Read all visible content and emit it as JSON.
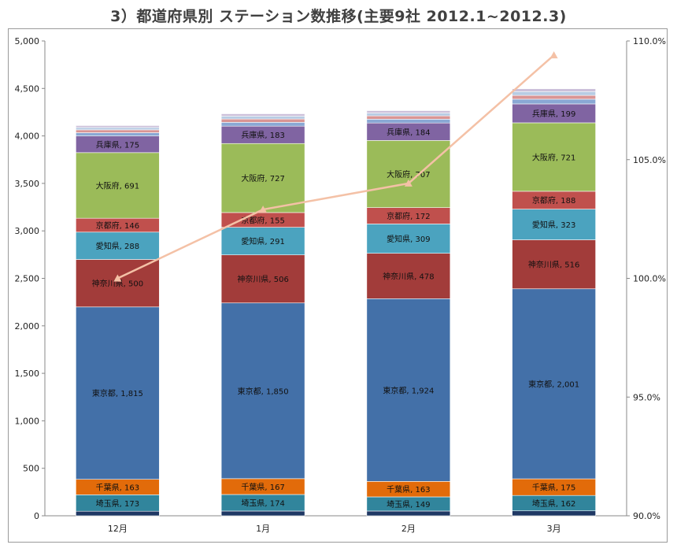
{
  "title": "3）都道府県別 ステーション数推移(主要9社 2012.1~2012.3)",
  "chart_data": {
    "type": "bar",
    "stacked": true,
    "categories": [
      "12月",
      "1月",
      "2月",
      "3月"
    ],
    "y_left_ticks": [
      "0",
      "500",
      "1,000",
      "1,500",
      "2,000",
      "2,500",
      "3,000",
      "3,500",
      "4,000",
      "4,500",
      "5,000"
    ],
    "ylim": [
      0,
      5000
    ],
    "y_right_ticks": [
      "90.0%",
      "95.0%",
      "100.0%",
      "105.0%",
      "110.0%"
    ],
    "y2lim": [
      90,
      110
    ],
    "series": [
      {
        "key": "base",
        "color": "#1f3864",
        "values": [
          48,
          50,
          50,
          52
        ]
      },
      {
        "label": "埼玉県",
        "color": "#31859c",
        "values": [
          173,
          174,
          149,
          162
        ],
        "value_labels": [
          "173",
          "174",
          "149",
          "162"
        ]
      },
      {
        "label": "千葉県",
        "color": "#e26b0a",
        "values": [
          163,
          167,
          163,
          175
        ],
        "value_labels": [
          "163",
          "167",
          "163",
          "175"
        ]
      },
      {
        "label": "東京都",
        "color": "#4370a8",
        "values": [
          1815,
          1850,
          1924,
          2001
        ],
        "value_labels": [
          "1,815",
          "1,850",
          "1,924",
          "2,001"
        ]
      },
      {
        "label": "神奈川県",
        "color": "#a23c3a",
        "values": [
          500,
          506,
          478,
          516
        ],
        "value_labels": [
          "500",
          "506",
          "478",
          "516"
        ]
      },
      {
        "label": "愛知県",
        "color": "#4ba3bf",
        "values": [
          288,
          291,
          309,
          323
        ],
        "value_labels": [
          "288",
          "291",
          "309",
          "323"
        ]
      },
      {
        "label": "京都府",
        "color": "#c0504d",
        "values": [
          146,
          155,
          172,
          188
        ],
        "value_labels": [
          "146",
          "155",
          "172",
          "188"
        ]
      },
      {
        "label": "大阪府",
        "color": "#9bbb59",
        "values": [
          691,
          727,
          707,
          721
        ],
        "value_labels": [
          "691",
          "727",
          "707",
          "721"
        ]
      },
      {
        "label": "兵庫県",
        "color": "#8064a2",
        "values": [
          175,
          183,
          184,
          199
        ],
        "value_labels": [
          "175",
          "183",
          "184",
          "199"
        ]
      },
      {
        "key": "other1",
        "color": "#8aa8d4",
        "values": [
          35,
          40,
          40,
          50
        ]
      },
      {
        "key": "other2",
        "color": "#d99594",
        "values": [
          30,
          35,
          35,
          40
        ]
      },
      {
        "key": "other3",
        "color": "#b8cce4",
        "values": [
          25,
          30,
          30,
          40
        ]
      },
      {
        "key": "other4",
        "color": "#ccc0da",
        "values": [
          20,
          25,
          25,
          30
        ]
      }
    ],
    "line_series": {
      "axis": "right",
      "color": "#f4c1a6",
      "marker": "triangle",
      "values": [
        100.0,
        102.9,
        104.0,
        109.4
      ]
    },
    "grid": false
  }
}
